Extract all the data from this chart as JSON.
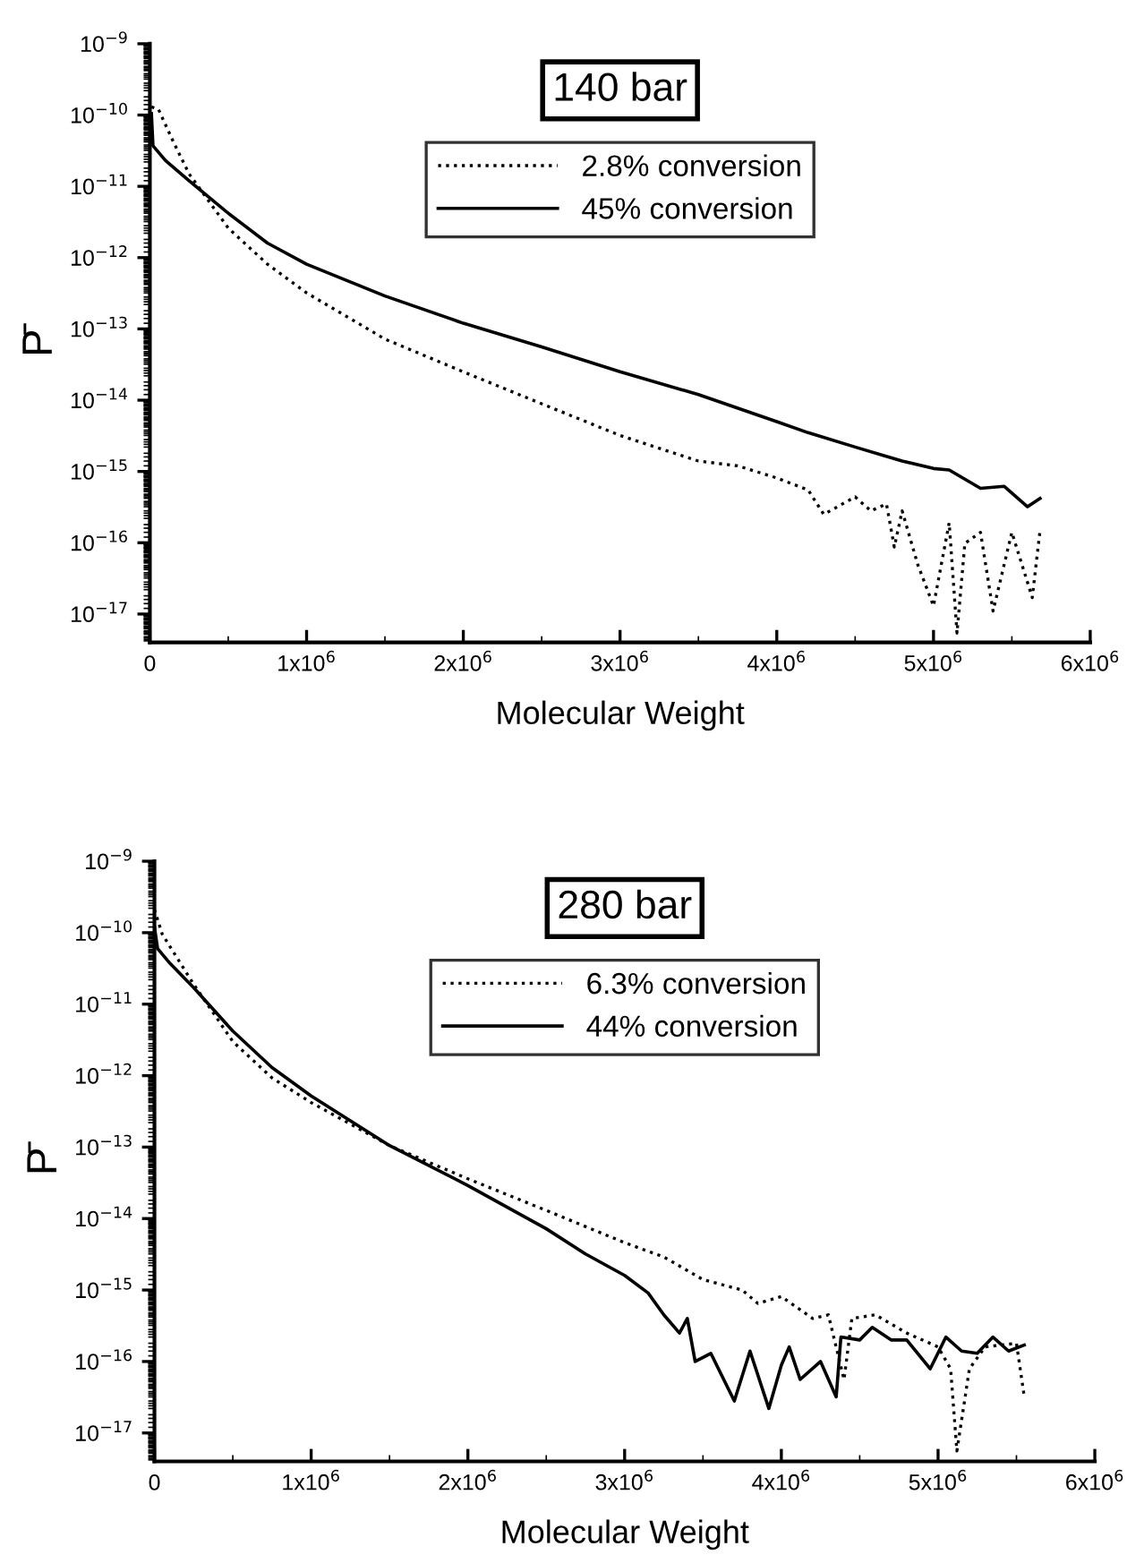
{
  "chart_data": [
    {
      "type": "line",
      "title": "140 bar",
      "xlabel": "Molecular Weight",
      "ylabel": "P̄",
      "log": "y",
      "legend": "top",
      "grid": false,
      "xlim": [
        0,
        6000000
      ],
      "xticks": [
        0,
        {
          "value": 1000000,
          "label": "1x10$^{6}$"
        },
        {
          "value": 2000000,
          "label": "2x10$^{6}$"
        },
        {
          "value": 3000000,
          "label": "3x10$^{6}$"
        },
        {
          "value": 4000000,
          "label": "4x10$^{6}$"
        },
        {
          "value": 5000000,
          "label": "5x10$^{6}$"
        },
        {
          "value": 6000000,
          "label": "6x10$^{6}$"
        }
      ],
      "ylim": [
        4e-18,
        1e-09
      ],
      "yticks": [
        {
          "value": 1e-17,
          "label": "10$^{−17}$"
        },
        {
          "value": 1e-16,
          "label": "10$^{−16}$"
        },
        {
          "value": 1e-15,
          "label": "10$^{−15}$"
        },
        {
          "value": 1e-14,
          "label": "10$^{−14}$"
        },
        {
          "value": 1e-13,
          "label": "10$^{−13}$"
        },
        {
          "value": 1e-12,
          "label": "10$^{−12}$"
        },
        {
          "value": 1e-11,
          "label": "10$^{−11}$"
        },
        {
          "value": 1e-10,
          "label": "10$^{−10}$"
        },
        {
          "value": 1e-09,
          "label": "10$^{−9}$"
        }
      ],
      "series": [
        {
          "name": "2.8% conversion",
          "color": "#000000",
          "line_style": "dotted",
          "x": [
            10000,
            55000,
            150000,
            250000,
            500000,
            750000,
            1000000,
            1500000,
            2000000,
            2500000,
            3000000,
            3500000,
            3750000,
            4000000,
            4200000,
            4300000,
            4500000,
            4600000,
            4700000,
            4750000,
            4800000,
            4900000,
            5000000,
            5100000,
            5150000,
            5200000,
            5300000,
            5380000,
            5500000,
            5630000,
            5680000
          ],
          "values": [
            1.3e-10,
            1.2e-10,
            4.2e-11,
            1.5e-11,
            2.6e-12,
            8.1e-13,
            3.2e-13,
            7.2e-14,
            2.5e-14,
            8.9e-15,
            3.2e-15,
            1.4e-15,
            1.2e-15,
            8.1e-16,
            5.5e-16,
            2.5e-16,
            4.4e-16,
            2.8e-16,
            3.5e-16,
            8.7e-17,
            2.8e-16,
            4.9e-17,
            1.3e-17,
            1.9e-16,
            5.4e-18,
            9.8e-17,
            1.4e-16,
            1.1e-17,
            1.4e-16,
            1.7e-17,
            1.5e-16
          ]
        },
        {
          "name": "45% conversion",
          "color": "#000000",
          "line_style": "solid",
          "x": [
            10000,
            20000,
            100000,
            250000,
            500000,
            750000,
            1000000,
            1500000,
            2000000,
            2500000,
            3000000,
            3500000,
            4000000,
            4200000,
            4500000,
            4800000,
            5000000,
            5100000,
            5300000,
            5450000,
            5600000,
            5680000
          ],
          "values": [
            1.05e-10,
            3.7e-11,
            2.3e-11,
            1.2e-11,
            4.2e-12,
            1.6e-12,
            8.1e-13,
            2.9e-13,
            1.2e-13,
            5.6e-14,
            2.5e-14,
            1.2e-14,
            5e-15,
            3.5e-15,
            2.2e-15,
            1.4e-15,
            1.1e-15,
            1.05e-15,
            5.8e-16,
            6.2e-16,
            3.2e-16,
            4.2e-16
          ]
        }
      ]
    },
    {
      "type": "line",
      "title": "280 bar",
      "xlabel": "Molecular Weight",
      "ylabel": "P̄",
      "log": "y",
      "legend": "top",
      "grid": false,
      "xlim": [
        0,
        6000000
      ],
      "xticks": [
        0,
        {
          "value": 1000000,
          "label": "1x10$^{6}$"
        },
        {
          "value": 2000000,
          "label": "2x10$^{6}$"
        },
        {
          "value": 3000000,
          "label": "3x10$^{6}$"
        },
        {
          "value": 4000000,
          "label": "4x10$^{6}$"
        },
        {
          "value": 5000000,
          "label": "5x10$^{6}$"
        },
        {
          "value": 6000000,
          "label": "6x10$^{6}$"
        }
      ],
      "ylim": [
        4e-18,
        1e-09
      ],
      "yticks": [
        {
          "value": 1e-17,
          "label": "10$^{−17}$"
        },
        {
          "value": 1e-16,
          "label": "10$^{−16}$"
        },
        {
          "value": 1e-15,
          "label": "10$^{−15}$"
        },
        {
          "value": 1e-14,
          "label": "10$^{−14}$"
        },
        {
          "value": 1e-13,
          "label": "10$^{−13}$"
        },
        {
          "value": 1e-12,
          "label": "10$^{−12}$"
        },
        {
          "value": 1e-11,
          "label": "10$^{−11}$"
        },
        {
          "value": 1e-10,
          "label": "10$^{−10}$"
        },
        {
          "value": 1e-09,
          "label": "10$^{−9}$"
        }
      ],
      "series": [
        {
          "name": "6.3% conversion",
          "color": "#000000",
          "line_style": "dotted",
          "x": [
            0,
            50000,
            250000,
            500000,
            750000,
            1000000,
            1500000,
            2000000,
            2500000,
            3000000,
            3250000,
            3500000,
            3750000,
            3850000,
            4000000,
            4200000,
            4300000,
            4400000,
            4450000,
            4600000,
            4800000,
            5000000,
            5080000,
            5120000,
            5200000,
            5300000,
            5500000,
            5550000
          ],
          "values": [
            2.1e-10,
            9.5e-11,
            1.9e-11,
            3e-12,
            9.3e-13,
            4.2e-13,
            1.05e-13,
            3.6e-14,
            1.3e-14,
            4.6e-15,
            2.9e-15,
            1.4e-15,
            1e-15,
            6.5e-16,
            8.1e-16,
            4e-16,
            4.5e-16,
            5.6e-17,
            4e-16,
            4.5e-16,
            2.5e-16,
            1.6e-16,
            7.9e-17,
            5.6e-18,
            7.9e-17,
            1.6e-16,
            1.8e-16,
            3.2e-17
          ]
        },
        {
          "name": "44% conversion",
          "color": "#000000",
          "line_style": "solid",
          "x": [
            0,
            20000,
            100000,
            250000,
            500000,
            750000,
            1000000,
            1500000,
            2000000,
            2500000,
            2750000,
            3000000,
            3150000,
            3250000,
            3350000,
            3400000,
            3450000,
            3550000,
            3700000,
            3800000,
            3920000,
            4000000,
            4050000,
            4120000,
            4250000,
            4350000,
            4380000,
            4500000,
            4580000,
            4700000,
            4800000,
            4950000,
            5050000,
            5150000,
            5250000,
            5350000,
            5450000,
            5550000
          ],
          "values": [
            1.2e-10,
            6e-11,
            3.7e-11,
            1.7e-11,
            4.2e-12,
            1.3e-12,
            5.2e-13,
            1.05e-13,
            2.9e-14,
            7.2e-15,
            3.2e-15,
            1.6e-15,
            9.1e-16,
            4.5e-16,
            2.5e-16,
            4e-16,
            1e-16,
            1.3e-16,
            2.8e-17,
            1.4e-16,
            2.2e-17,
            8.9e-17,
            1.6e-16,
            5.6e-17,
            1e-16,
            3.2e-17,
            2.2e-16,
            2e-16,
            3e-16,
            2e-16,
            2e-16,
            7.9e-17,
            2.2e-16,
            1.4e-16,
            1.3e-16,
            2.2e-16,
            1.4e-16,
            1.7e-16
          ]
        }
      ]
    }
  ]
}
